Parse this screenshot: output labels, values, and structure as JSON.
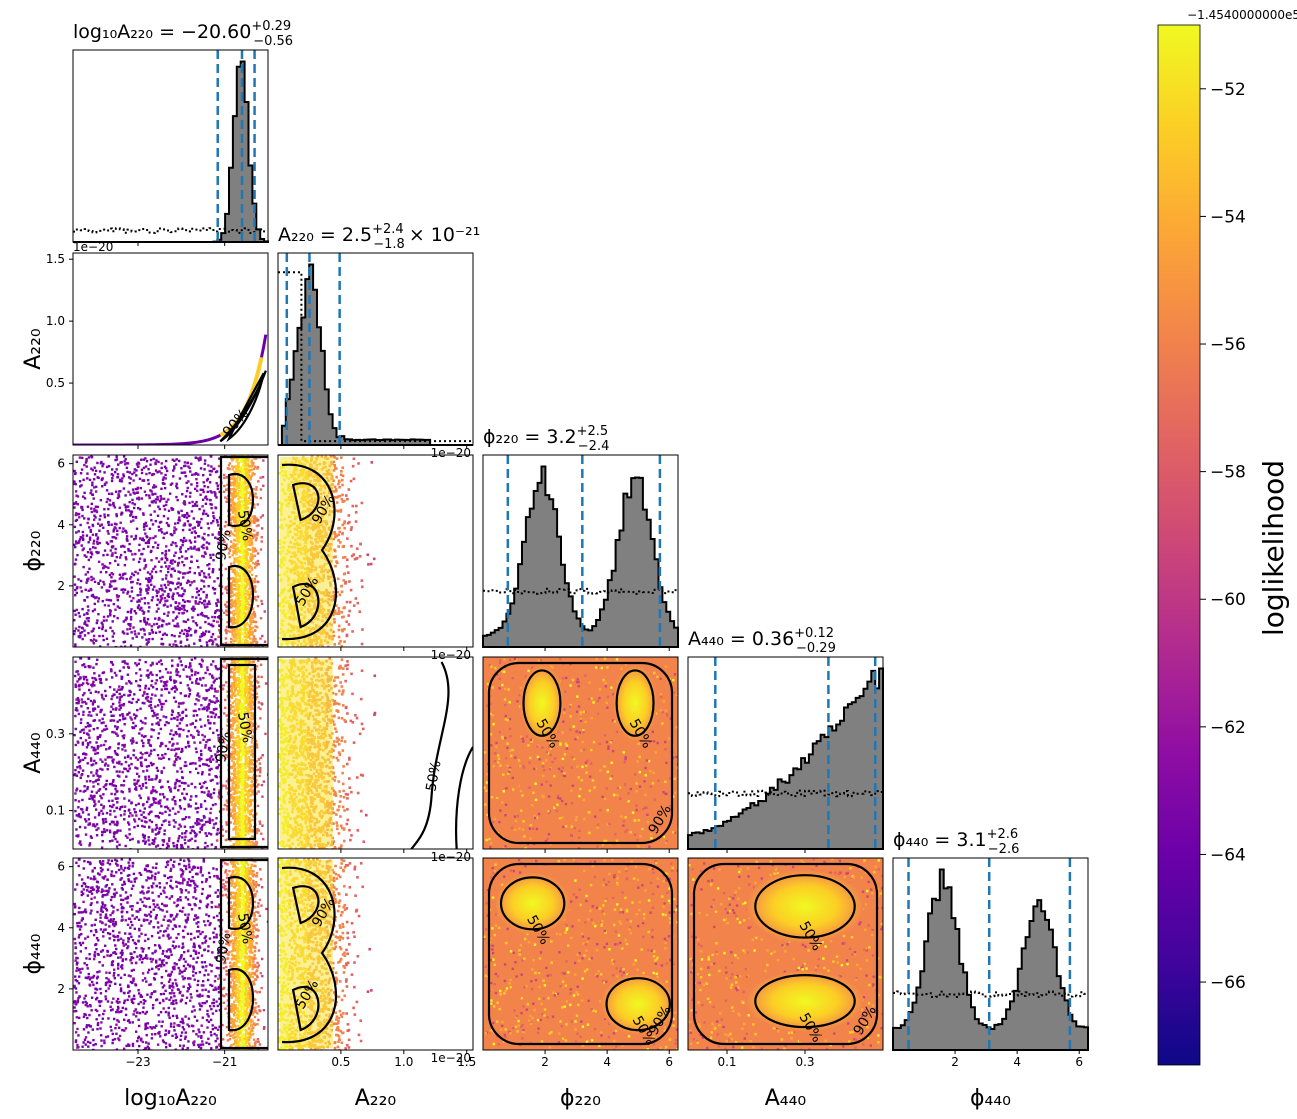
{
  "chart_data": {
    "type": "corner",
    "parameters": [
      {
        "key": "log10A220",
        "axis_label": "log₁₀A₂₂₀",
        "title_prefix": "log₁₀A₂₂₀ = −20.60",
        "title_plus": "+0.29",
        "title_minus": "−0.56",
        "title_suffix": "",
        "range": [
          -24.5,
          -20.0
        ],
        "ticks": [
          -23,
          -21
        ],
        "tick_labels": [
          "−23",
          "−21"
        ],
        "offset_label": "",
        "quantiles": [
          -21.16,
          -20.6,
          -20.31
        ],
        "histogram": {
          "bins_from": -24.5,
          "bins_to": -20.0,
          "peak": -20.6,
          "width": 0.18,
          "shape": "single_peak"
        },
        "prior_level": 0.08
      },
      {
        "key": "A220",
        "axis_label": "A₂₂₀",
        "title_prefix": "A₂₂₀ = 2.5",
        "title_plus": "+2.4",
        "title_minus": "−1.8",
        "title_suffix": "× 10⁻²¹",
        "range": [
          0.0,
          1.55
        ],
        "ticks": [
          0.5,
          1.0,
          1.5
        ],
        "tick_labels": [
          "0.5",
          "1.0",
          "1.5"
        ],
        "y_ticks": [
          0.5,
          1.0,
          1.5
        ],
        "y_tick_labels": [
          "0.5",
          "1.0",
          "1.5"
        ],
        "offset_label": "1e−20",
        "quantiles": [
          0.07,
          0.25,
          0.49
        ],
        "histogram": {
          "shape": "skewed_peak",
          "peak": 0.25
        },
        "prior_level": 0.85
      },
      {
        "key": "phi220",
        "axis_label": "ϕ₂₂₀",
        "title_prefix": "ϕ₂₂₀ = 3.2",
        "title_plus": "+2.5",
        "title_minus": "−2.4",
        "title_suffix": "",
        "range": [
          0.0,
          6.283
        ],
        "ticks": [
          2,
          4,
          6
        ],
        "tick_labels": [
          "2",
          "4",
          "6"
        ],
        "offset_label": "",
        "quantiles": [
          0.8,
          3.2,
          5.7
        ],
        "histogram": {
          "shape": "bimodal",
          "peaks": [
            1.9,
            4.9
          ]
        },
        "prior_level": 0.5
      },
      {
        "key": "A440",
        "axis_label": "A₄₄₀",
        "title_prefix": "A₄₄₀ = 0.36",
        "title_plus": "+0.12",
        "title_minus": "−0.29",
        "title_suffix": "",
        "range": [
          0.0,
          0.5
        ],
        "ticks": [
          0.1,
          0.3
        ],
        "tick_labels": [
          "0.1",
          "0.3"
        ],
        "offset_label": "",
        "quantiles": [
          0.07,
          0.36,
          0.48
        ],
        "histogram": {
          "shape": "rising"
        },
        "prior_level": 0.5
      },
      {
        "key": "phi440",
        "axis_label": "ϕ₄₄₀",
        "title_prefix": "ϕ₄₄₀ = 3.1",
        "title_plus": "+2.6",
        "title_minus": "−2.6",
        "title_suffix": "",
        "range": [
          0.0,
          6.283
        ],
        "ticks": [
          2,
          4,
          6
        ],
        "tick_labels": [
          "2",
          "4",
          "6"
        ],
        "offset_label": "",
        "quantiles": [
          0.5,
          3.1,
          5.7
        ],
        "histogram": {
          "shape": "bimodal",
          "peaks": [
            1.6,
            4.7
          ]
        },
        "prior_level": 0.5
      }
    ],
    "contour_levels": [
      "50%",
      "90%"
    ],
    "colorbar": {
      "label": "loglikelihood",
      "offset_label": "−1.4540000000e5",
      "range": [
        -67.3,
        -51.0
      ],
      "ticks": [
        -52,
        -54,
        -56,
        -58,
        -60,
        -62,
        -64,
        -66
      ],
      "tick_labels": [
        "−52",
        "−54",
        "−56",
        "−58",
        "−60",
        "−62",
        "−64",
        "−66"
      ],
      "colormap": "plasma"
    },
    "colors": {
      "histogram_fill": "#808080",
      "quantile_line": "#1f77b4",
      "contour": "#000000",
      "prior": "#000000"
    }
  }
}
